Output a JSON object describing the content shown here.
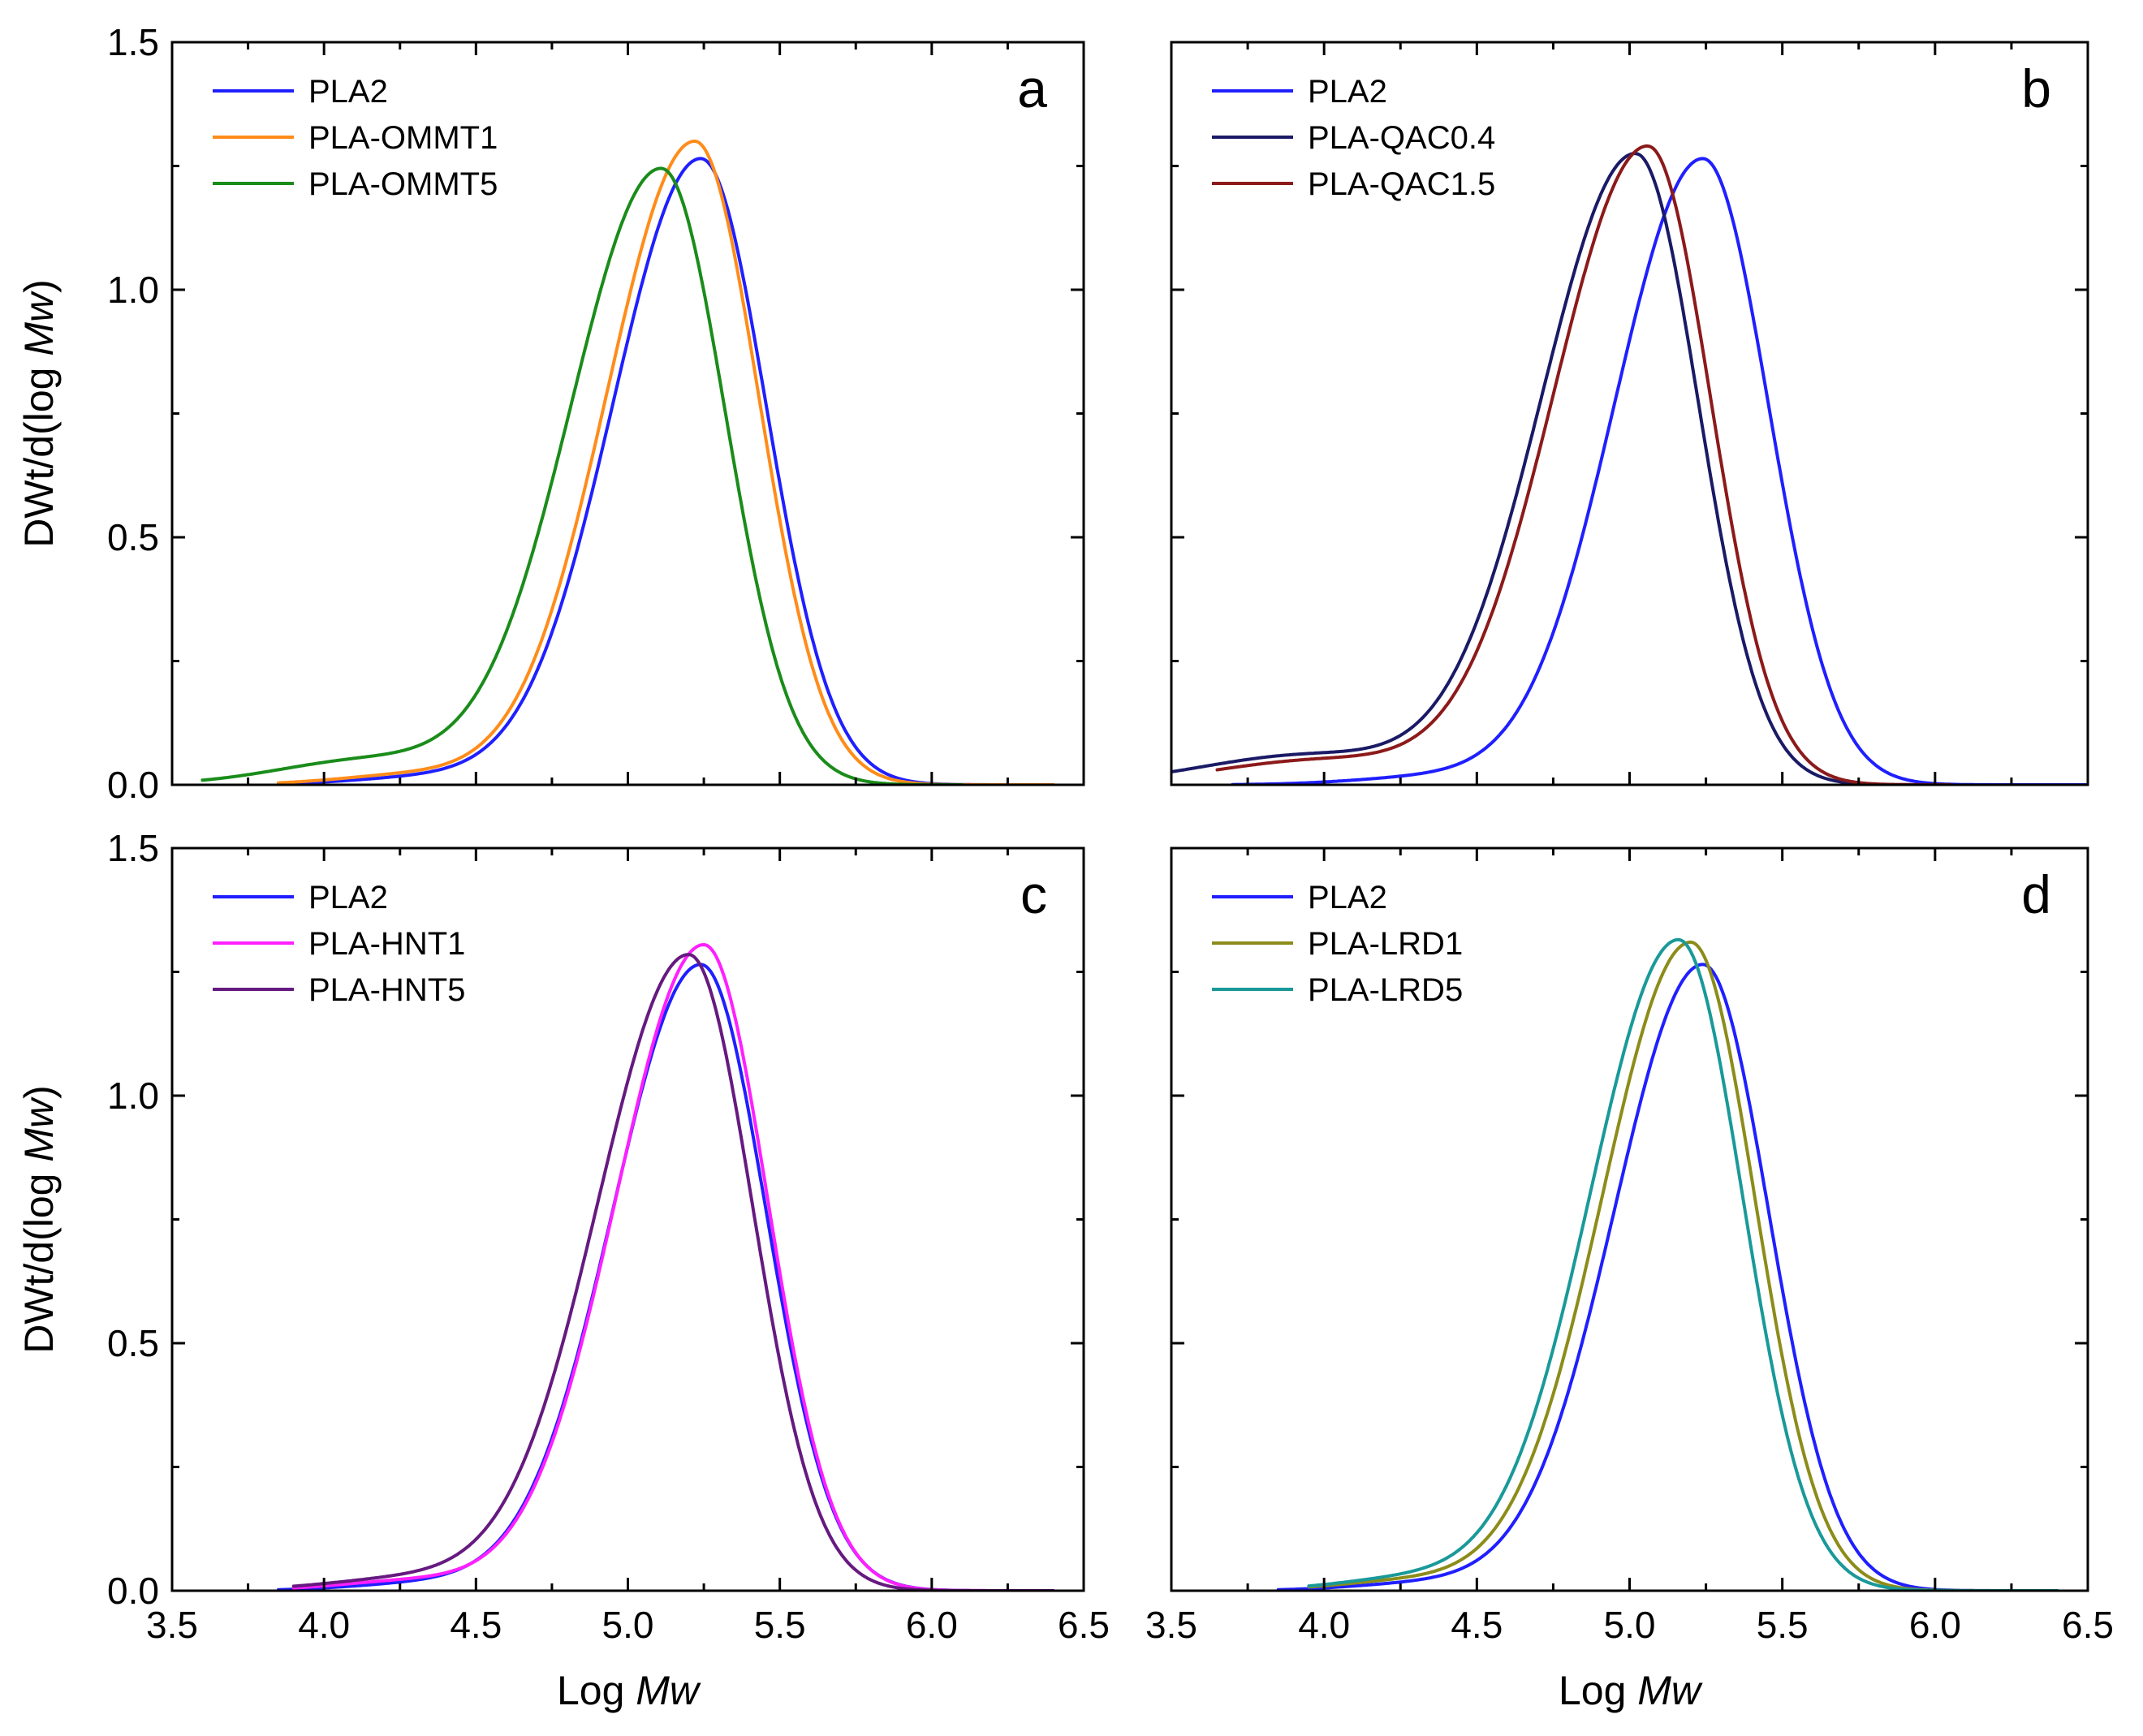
{
  "chart_data": [
    {
      "type": "line",
      "panel": "top-left",
      "label": "a",
      "xlabel": "",
      "ylabel": "DWt/d(log Mw)",
      "xlim": [
        3.5,
        6.5
      ],
      "ylim": [
        0.0,
        1.5
      ],
      "xticks": [
        "3.5",
        "4.0",
        "4.5",
        "5.0",
        "5.5",
        "6.0",
        "6.5"
      ],
      "yticks": [
        "0.0",
        "0.5",
        "1.0",
        "1.5"
      ],
      "legend_position": "top-left",
      "series": [
        {
          "name": "PLA2",
          "color": "#1f1fff",
          "peak_x": 5.24,
          "peak_y": 1.265,
          "sigma_left": 0.29,
          "sigma_right": 0.215,
          "tail_amp": 0.015,
          "tail_center": 4.35,
          "tail_sigma": 0.25,
          "x_start": 3.85,
          "x_end": 6.4
        },
        {
          "name": "PLA-OMMT1",
          "color": "#ff8c1a",
          "peak_x": 5.22,
          "peak_y": 1.3,
          "sigma_left": 0.29,
          "sigma_right": 0.21,
          "tail_amp": 0.02,
          "tail_center": 4.3,
          "tail_sigma": 0.25,
          "x_start": 3.85,
          "x_end": 6.4
        },
        {
          "name": "PLA-OMMT5",
          "color": "#1a8c1a",
          "peak_x": 5.11,
          "peak_y": 1.245,
          "sigma_left": 0.3,
          "sigma_right": 0.21,
          "tail_amp": 0.05,
          "tail_center": 4.15,
          "tail_sigma": 0.3,
          "x_start": 3.6,
          "x_end": 6.1
        }
      ]
    },
    {
      "type": "line",
      "panel": "top-right",
      "label": "b",
      "xlabel": "",
      "ylabel": "",
      "xlim": [
        3.5,
        6.5
      ],
      "ylim": [
        0.0,
        1.5
      ],
      "xticks": [
        "3.5",
        "4.0",
        "4.5",
        "5.0",
        "5.5",
        "6.0",
        "6.5"
      ],
      "yticks": [
        "0.0",
        "0.5",
        "1.0",
        "1.5"
      ],
      "legend_position": "top-left",
      "series": [
        {
          "name": "PLA2",
          "color": "#1f1fff",
          "peak_x": 5.24,
          "peak_y": 1.265,
          "sigma_left": 0.29,
          "sigma_right": 0.215,
          "tail_amp": 0.015,
          "tail_center": 4.35,
          "tail_sigma": 0.25,
          "x_start": 3.7,
          "x_end": 6.5
        },
        {
          "name": "PLA-QAC0.4",
          "color": "#1a1a66",
          "peak_x": 5.02,
          "peak_y": 1.275,
          "sigma_left": 0.31,
          "sigma_right": 0.205,
          "tail_amp": 0.06,
          "tail_center": 3.95,
          "tail_sigma": 0.35,
          "x_start": 3.5,
          "x_end": 6.0
        },
        {
          "name": "PLA-QAC1.5",
          "color": "#8c1a1a",
          "peak_x": 5.06,
          "peak_y": 1.29,
          "sigma_left": 0.31,
          "sigma_right": 0.205,
          "tail_amp": 0.05,
          "tail_center": 4.0,
          "tail_sigma": 0.35,
          "x_start": 3.65,
          "x_end": 6.05
        }
      ]
    },
    {
      "type": "line",
      "panel": "bottom-left",
      "label": "c",
      "xlabel": "Log Mw",
      "ylabel": "DWt/d(log Mw)",
      "xlim": [
        3.5,
        6.5
      ],
      "ylim": [
        0.0,
        1.5
      ],
      "xticks": [
        "3.5",
        "4.0",
        "4.5",
        "5.0",
        "5.5",
        "6.0",
        "6.5"
      ],
      "yticks": [
        "0.0",
        "0.5",
        "1.0",
        "1.5"
      ],
      "legend_position": "top-left",
      "series": [
        {
          "name": "PLA2",
          "color": "#1f1fff",
          "peak_x": 5.24,
          "peak_y": 1.265,
          "sigma_left": 0.29,
          "sigma_right": 0.215,
          "tail_amp": 0.015,
          "tail_center": 4.35,
          "tail_sigma": 0.25,
          "x_start": 3.85,
          "x_end": 6.4
        },
        {
          "name": "PLA-HNT1",
          "color": "#ff1fff",
          "peak_x": 5.25,
          "peak_y": 1.305,
          "sigma_left": 0.29,
          "sigma_right": 0.21,
          "tail_amp": 0.02,
          "tail_center": 4.3,
          "tail_sigma": 0.25,
          "x_start": 3.9,
          "x_end": 6.4
        },
        {
          "name": "PLA-HNT5",
          "color": "#661a80",
          "peak_x": 5.2,
          "peak_y": 1.285,
          "sigma_left": 0.3,
          "sigma_right": 0.21,
          "tail_amp": 0.025,
          "tail_center": 4.3,
          "tail_sigma": 0.28,
          "x_start": 3.9,
          "x_end": 6.4
        }
      ]
    },
    {
      "type": "line",
      "panel": "bottom-right",
      "label": "d",
      "xlabel": "Log Mw",
      "ylabel": "",
      "xlim": [
        3.5,
        6.5
      ],
      "ylim": [
        0.0,
        1.5
      ],
      "xticks": [
        "3.5",
        "4.0",
        "4.5",
        "5.0",
        "5.5",
        "6.0",
        "6.5"
      ],
      "yticks": [
        "0.0",
        "0.5",
        "1.0",
        "1.5"
      ],
      "legend_position": "top-left",
      "series": [
        {
          "name": "PLA2",
          "color": "#1f1fff",
          "peak_x": 5.24,
          "peak_y": 1.265,
          "sigma_left": 0.29,
          "sigma_right": 0.215,
          "tail_amp": 0.015,
          "tail_center": 4.35,
          "tail_sigma": 0.25,
          "x_start": 3.85,
          "x_end": 6.4
        },
        {
          "name": "PLA-LRD1",
          "color": "#8c8c1a",
          "peak_x": 5.2,
          "peak_y": 1.31,
          "sigma_left": 0.29,
          "sigma_right": 0.21,
          "tail_amp": 0.02,
          "tail_center": 4.3,
          "tail_sigma": 0.25,
          "x_start": 3.95,
          "x_end": 6.2
        },
        {
          "name": "PLA-LRD5",
          "color": "#1a9999",
          "peak_x": 5.16,
          "peak_y": 1.315,
          "sigma_left": 0.29,
          "sigma_right": 0.21,
          "tail_amp": 0.025,
          "tail_center": 4.3,
          "tail_sigma": 0.25,
          "x_start": 3.95,
          "x_end": 6.4
        }
      ]
    }
  ],
  "axis": {
    "ylabel_text": "DWt/d(log ",
    "ylabel_italic": "Mw",
    "ylabel_close": ")",
    "xlabel_text": "Log ",
    "xlabel_italic": "Mw"
  }
}
